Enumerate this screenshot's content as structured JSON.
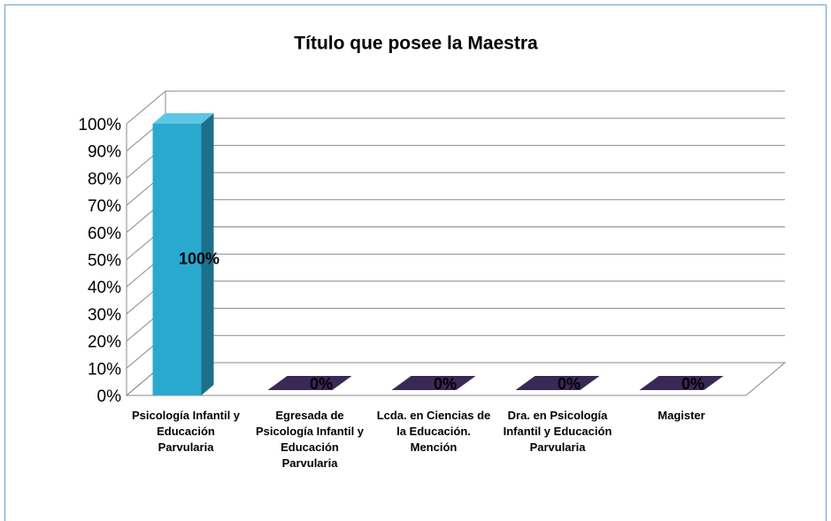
{
  "chart_data": {
    "type": "bar3d",
    "title": "Título que posee la Maestra",
    "categories": [
      "Psicología Infantil y Educación Parvularia",
      "Egresada de Psicología Infantil y Educación Parvularia",
      "Lcda. en Ciencias de la Educación. Mención",
      "Dra. en Psicología Infantil y Educación Parvularia",
      "Magister"
    ],
    "values": [
      100,
      0,
      0,
      0,
      0
    ],
    "value_labels": [
      "100%",
      "0%",
      "0%",
      "0%",
      "0%"
    ],
    "color": "#2aa9cf",
    "ylim": [
      0,
      100
    ],
    "yticks": [
      {
        "value": 0,
        "label": "0%"
      },
      {
        "value": 10,
        "label": "10%"
      },
      {
        "value": 20,
        "label": "20%"
      },
      {
        "value": 30,
        "label": "30%"
      },
      {
        "value": 40,
        "label": "40%"
      },
      {
        "value": 50,
        "label": "50%"
      },
      {
        "value": 60,
        "label": "60%"
      },
      {
        "value": 70,
        "label": "70%"
      },
      {
        "value": 80,
        "label": "80%"
      },
      {
        "value": 90,
        "label": "90%"
      },
      {
        "value": 100,
        "label": "100%"
      }
    ],
    "grid": true
  }
}
